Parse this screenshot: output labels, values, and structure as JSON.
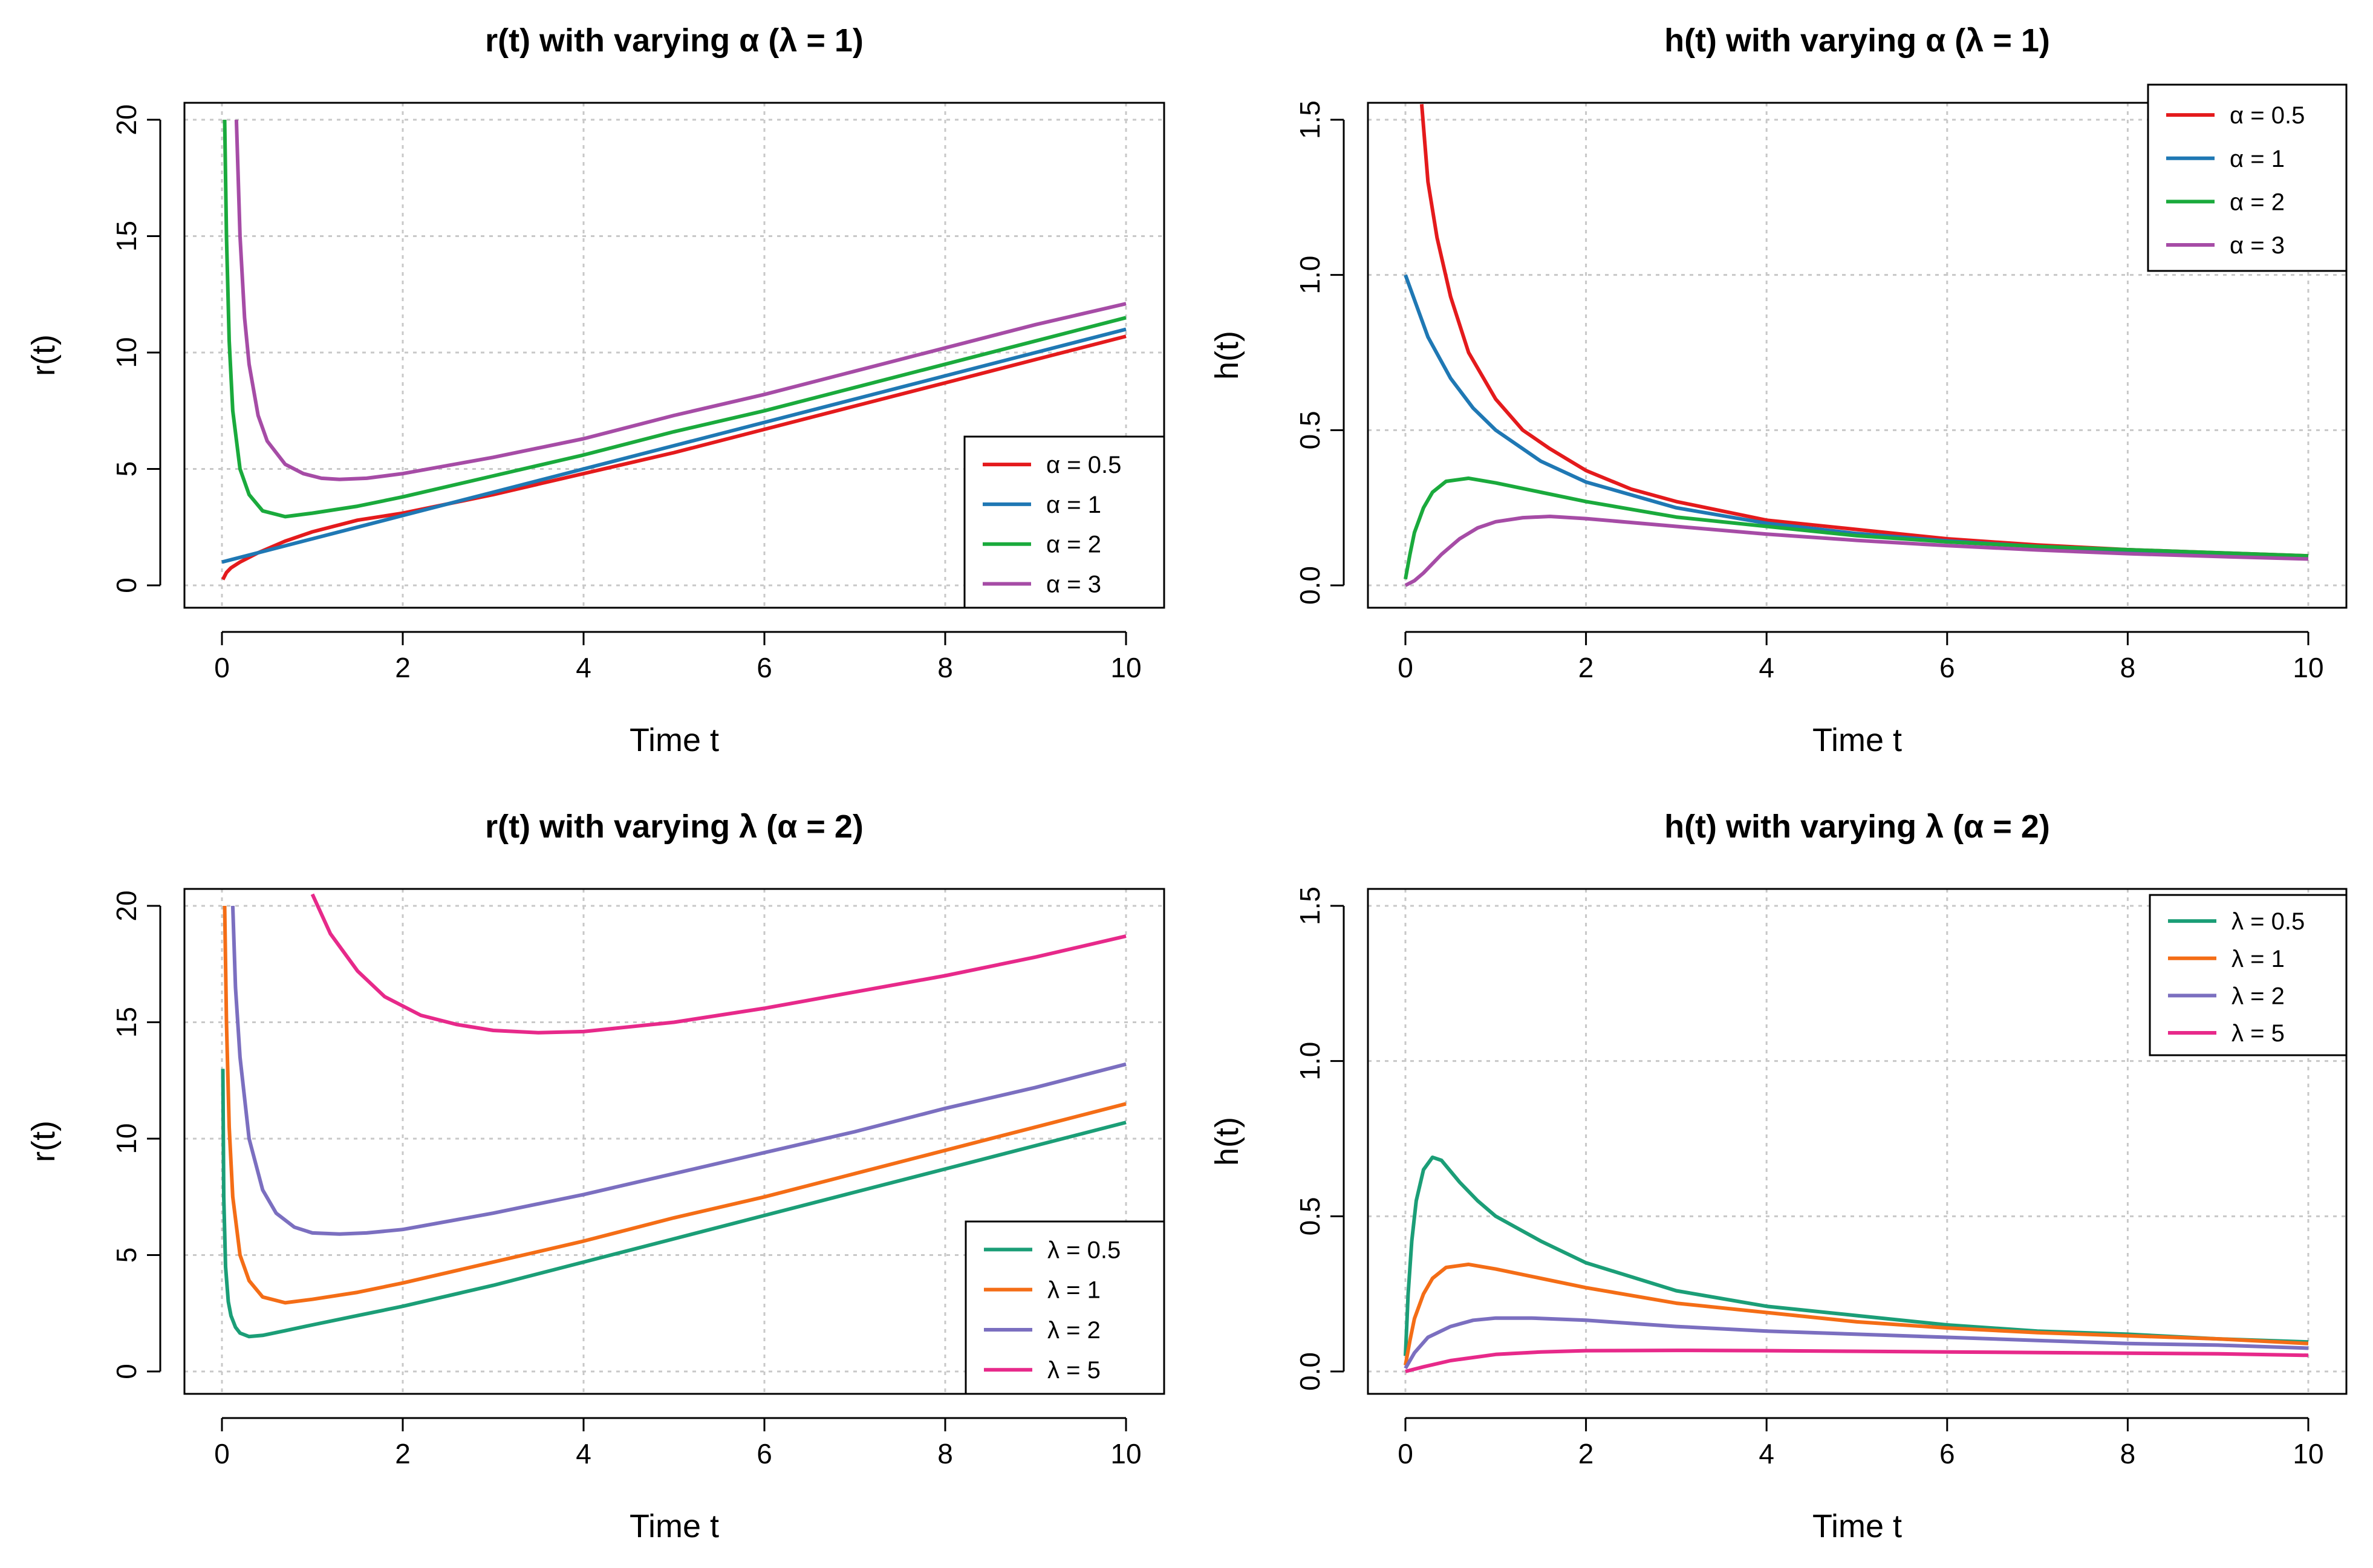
{
  "chart_data": [
    {
      "type": "line",
      "title": "r(t) with varying α (λ = 1)",
      "xlabel": "Time t",
      "ylabel": "r(t)",
      "xlim": [
        0,
        10
      ],
      "ylim": [
        0,
        20
      ],
      "xticks": [
        "0",
        "2",
        "4",
        "6",
        "8",
        "10"
      ],
      "yticks": [
        "0",
        "5",
        "10",
        "15",
        "20"
      ],
      "grid": true,
      "legend_position": "bottom-right",
      "series": [
        {
          "name": "α = 0.5",
          "color": "#e41a1c",
          "x": [
            0.01,
            0.05,
            0.1,
            0.2,
            0.4,
            0.7,
            1,
            1.5,
            2,
            3,
            4,
            5,
            6,
            7,
            8,
            9,
            10
          ],
          "y": [
            0.25,
            0.55,
            0.75,
            1.0,
            1.4,
            1.9,
            2.3,
            2.8,
            3.1,
            3.9,
            4.8,
            5.7,
            6.7,
            7.7,
            8.7,
            9.7,
            10.7
          ]
        },
        {
          "name": "α = 1",
          "color": "#1f78b4",
          "x": [
            0,
            1,
            2,
            3,
            4,
            5,
            6,
            7,
            8,
            9,
            10
          ],
          "y": [
            1.0,
            2.0,
            3.0,
            4.0,
            5.0,
            6.0,
            7.0,
            8.0,
            9.0,
            10.0,
            11.0
          ]
        },
        {
          "name": "α = 2",
          "color": "#1aaa3c",
          "x": [
            0.03,
            0.05,
            0.08,
            0.12,
            0.2,
            0.3,
            0.45,
            0.7,
            1,
            1.5,
            2,
            3,
            4,
            5,
            6,
            7,
            8,
            9,
            10
          ],
          "y": [
            20,
            15,
            10.5,
            7.5,
            5.0,
            3.9,
            3.2,
            2.95,
            3.1,
            3.4,
            3.8,
            4.7,
            5.6,
            6.6,
            7.5,
            8.5,
            9.5,
            10.5,
            11.5
          ]
        },
        {
          "name": "α = 3",
          "color": "#a64ca6",
          "x": [
            0.16,
            0.2,
            0.25,
            0.3,
            0.4,
            0.5,
            0.7,
            0.9,
            1.1,
            1.3,
            1.6,
            2,
            3,
            4,
            5,
            6,
            7,
            8,
            9,
            10
          ],
          "y": [
            20,
            15,
            11.5,
            9.5,
            7.3,
            6.2,
            5.2,
            4.8,
            4.6,
            4.55,
            4.6,
            4.8,
            5.5,
            6.3,
            7.3,
            8.2,
            9.2,
            10.2,
            11.2,
            12.1
          ]
        }
      ]
    },
    {
      "type": "line",
      "title": "h(t) with varying α (λ = 1)",
      "xlabel": "Time t",
      "ylabel": "h(t)",
      "xlim": [
        0,
        10
      ],
      "ylim": [
        0,
        1.5
      ],
      "xticks": [
        "0",
        "2",
        "4",
        "6",
        "8",
        "10"
      ],
      "yticks": [
        "0.0",
        "0.5",
        "1.0",
        "1.5"
      ],
      "grid": true,
      "legend_position": "top-right",
      "series": [
        {
          "name": "α = 0.5",
          "color": "#e41a1c",
          "x": [
            0.18,
            0.25,
            0.35,
            0.5,
            0.7,
            1,
            1.3,
            1.6,
            2,
            2.5,
            3,
            4,
            5,
            6,
            7,
            8,
            9,
            10
          ],
          "y": [
            1.55,
            1.3,
            1.12,
            0.93,
            0.75,
            0.6,
            0.5,
            0.44,
            0.37,
            0.31,
            0.27,
            0.21,
            0.18,
            0.15,
            0.13,
            0.115,
            0.105,
            0.095
          ]
        },
        {
          "name": "α = 1",
          "color": "#1f78b4",
          "x": [
            0,
            0.25,
            0.5,
            0.75,
            1,
            1.5,
            2,
            3,
            4,
            5,
            6,
            7,
            8,
            9,
            10
          ],
          "y": [
            1.0,
            0.8,
            0.667,
            0.571,
            0.5,
            0.4,
            0.333,
            0.25,
            0.2,
            0.167,
            0.143,
            0.125,
            0.111,
            0.1,
            0.091
          ]
        },
        {
          "name": "α = 2",
          "color": "#1aaa3c",
          "x": [
            0,
            0.05,
            0.1,
            0.2,
            0.3,
            0.45,
            0.7,
            1,
            1.5,
            2,
            3,
            4,
            5,
            6,
            7,
            8,
            9,
            10
          ],
          "y": [
            0.02,
            0.1,
            0.17,
            0.25,
            0.3,
            0.335,
            0.345,
            0.33,
            0.3,
            0.27,
            0.22,
            0.19,
            0.16,
            0.14,
            0.125,
            0.115,
            0.105,
            0.095
          ]
        },
        {
          "name": "α = 3",
          "color": "#a64ca6",
          "x": [
            0,
            0.1,
            0.2,
            0.4,
            0.6,
            0.8,
            1,
            1.3,
            1.6,
            2,
            3,
            4,
            5,
            6,
            7,
            8,
            9,
            10
          ],
          "y": [
            0.0,
            0.015,
            0.04,
            0.1,
            0.15,
            0.185,
            0.205,
            0.218,
            0.222,
            0.215,
            0.19,
            0.165,
            0.145,
            0.128,
            0.114,
            0.102,
            0.093,
            0.085
          ]
        }
      ]
    },
    {
      "type": "line",
      "title": "r(t) with varying λ (α = 2)",
      "xlabel": "Time t",
      "ylabel": "r(t)",
      "xlim": [
        0,
        10
      ],
      "ylim": [
        0,
        20
      ],
      "xticks": [
        "0",
        "2",
        "4",
        "6",
        "8",
        "10"
      ],
      "yticks": [
        "0",
        "5",
        "10",
        "15",
        "20"
      ],
      "grid": true,
      "legend_position": "bottom-right",
      "series": [
        {
          "name": "λ = 0.5",
          "color": "#1b9e77",
          "x": [
            0.01,
            0.02,
            0.04,
            0.07,
            0.1,
            0.15,
            0.2,
            0.3,
            0.45,
            0.7,
            1,
            1.5,
            2,
            3,
            4,
            5,
            6,
            7,
            8,
            9,
            10
          ],
          "y": [
            13,
            7.5,
            4.5,
            3.0,
            2.4,
            1.9,
            1.65,
            1.5,
            1.55,
            1.75,
            2.0,
            2.4,
            2.8,
            3.7,
            4.7,
            5.7,
            6.7,
            7.7,
            8.7,
            9.7,
            10.7
          ]
        },
        {
          "name": "λ = 1",
          "color": "#f46d16",
          "x": [
            0.03,
            0.05,
            0.08,
            0.12,
            0.2,
            0.3,
            0.45,
            0.7,
            1,
            1.5,
            2,
            3,
            4,
            5,
            6,
            7,
            8,
            9,
            10
          ],
          "y": [
            20,
            15,
            10.5,
            7.5,
            5.0,
            3.9,
            3.2,
            2.95,
            3.1,
            3.4,
            3.8,
            4.7,
            5.6,
            6.6,
            7.5,
            8.5,
            9.5,
            10.5,
            11.5
          ]
        },
        {
          "name": "λ = 2",
          "color": "#7b6fc0",
          "x": [
            0.12,
            0.15,
            0.2,
            0.3,
            0.45,
            0.6,
            0.8,
            1,
            1.3,
            1.6,
            2,
            3,
            4,
            5,
            6,
            7,
            8,
            9,
            10
          ],
          "y": [
            20,
            16.5,
            13.5,
            10,
            7.8,
            6.8,
            6.2,
            5.95,
            5.9,
            5.95,
            6.1,
            6.8,
            7.6,
            8.5,
            9.4,
            10.3,
            11.3,
            12.2,
            13.2
          ]
        },
        {
          "name": "λ = 5",
          "color": "#e7298a",
          "x": [
            1.0,
            1.2,
            1.5,
            1.8,
            2.2,
            2.6,
            3.0,
            3.5,
            4.0,
            4.5,
            5,
            6,
            7,
            8,
            9,
            10
          ],
          "y": [
            20.5,
            18.8,
            17.2,
            16.1,
            15.3,
            14.9,
            14.65,
            14.55,
            14.6,
            14.8,
            15.0,
            15.6,
            16.3,
            17.0,
            17.8,
            18.7
          ]
        }
      ]
    },
    {
      "type": "line",
      "title": "h(t) with varying λ (α = 2)",
      "xlabel": "Time t",
      "ylabel": "h(t)",
      "xlim": [
        0,
        10
      ],
      "ylim": [
        0,
        1.5
      ],
      "xticks": [
        "0",
        "2",
        "4",
        "6",
        "8",
        "10"
      ],
      "yticks": [
        "0.0",
        "0.5",
        "1.0",
        "1.5"
      ],
      "grid": true,
      "legend_position": "top-right",
      "series": [
        {
          "name": "λ = 0.5",
          "color": "#1b9e77",
          "x": [
            0,
            0.03,
            0.07,
            0.12,
            0.2,
            0.3,
            0.4,
            0.6,
            0.8,
            1,
            1.5,
            2,
            3,
            4,
            5,
            6,
            7,
            8,
            9,
            10
          ],
          "y": [
            0.05,
            0.25,
            0.42,
            0.55,
            0.65,
            0.69,
            0.68,
            0.61,
            0.55,
            0.5,
            0.42,
            0.35,
            0.26,
            0.21,
            0.18,
            0.15,
            0.13,
            0.12,
            0.105,
            0.095
          ]
        },
        {
          "name": "λ = 1",
          "color": "#f46d16",
          "x": [
            0,
            0.05,
            0.1,
            0.2,
            0.3,
            0.45,
            0.7,
            1,
            1.5,
            2,
            3,
            4,
            5,
            6,
            7,
            8,
            9,
            10
          ],
          "y": [
            0.02,
            0.1,
            0.17,
            0.25,
            0.3,
            0.335,
            0.345,
            0.33,
            0.3,
            0.27,
            0.22,
            0.19,
            0.16,
            0.14,
            0.125,
            0.115,
            0.105,
            0.09
          ]
        },
        {
          "name": "λ = 2",
          "color": "#7b6fc0",
          "x": [
            0,
            0.1,
            0.25,
            0.5,
            0.75,
            1,
            1.4,
            2,
            3,
            4,
            5,
            6,
            7,
            8,
            9,
            10
          ],
          "y": [
            0.01,
            0.06,
            0.11,
            0.145,
            0.165,
            0.172,
            0.172,
            0.165,
            0.145,
            0.13,
            0.12,
            0.11,
            0.1,
            0.09,
            0.085,
            0.075
          ]
        },
        {
          "name": "λ = 5",
          "color": "#e7298a",
          "x": [
            0,
            0.2,
            0.5,
            1,
            1.5,
            2,
            3,
            4,
            5,
            6,
            7,
            8,
            9,
            10
          ],
          "y": [
            0.0,
            0.015,
            0.035,
            0.055,
            0.063,
            0.067,
            0.068,
            0.067,
            0.065,
            0.063,
            0.061,
            0.059,
            0.057,
            0.052
          ]
        }
      ]
    }
  ]
}
